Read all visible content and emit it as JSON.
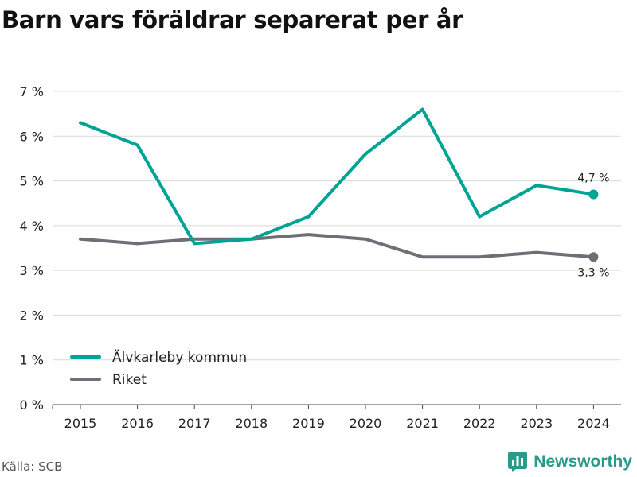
{
  "title": "Barn vars föräldrar separerat per år",
  "source": "Källa: SCB",
  "brand": {
    "name": "Newsworthy",
    "icon": "bar-chart-logo-icon"
  },
  "colors": {
    "series_1": "#00a395",
    "series_2": "#6e6e77",
    "grid": "#d9d9d9",
    "brand": "#2a9a8a"
  },
  "chart_data": {
    "type": "line",
    "x": [
      "2015",
      "2016",
      "2017",
      "2018",
      "2019",
      "2020",
      "2021",
      "2022",
      "2023",
      "2024"
    ],
    "ylim": [
      0,
      7
    ],
    "yticks": [
      0,
      1,
      2,
      3,
      4,
      5,
      6,
      7
    ],
    "ytick_labels": [
      "0 %",
      "1 %",
      "2 %",
      "3 %",
      "4 %",
      "5 %",
      "6 %",
      "7 %"
    ],
    "grid": true,
    "legend_position": "bottom-left",
    "series": [
      {
        "name": "Älvkarleby kommun",
        "color": "#00a395",
        "values": [
          6.3,
          5.8,
          3.6,
          3.7,
          4.2,
          5.6,
          6.6,
          4.2,
          4.9,
          4.7
        ],
        "end_label": "4,7 %"
      },
      {
        "name": "Riket",
        "color": "#6e6e77",
        "values": [
          3.7,
          3.6,
          3.7,
          3.7,
          3.8,
          3.7,
          3.3,
          3.3,
          3.4,
          3.3
        ],
        "end_label": "3,3 %"
      }
    ]
  }
}
